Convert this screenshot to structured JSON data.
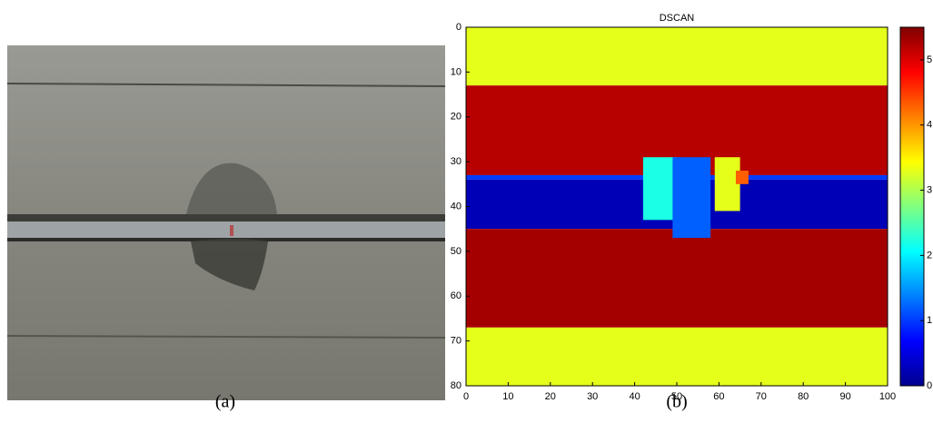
{
  "panel_a": {
    "caption": "(a)"
  },
  "chart_data": {
    "type": "heatmap",
    "title": "DSCAN",
    "caption": "(b)",
    "xlim": [
      0,
      100
    ],
    "ylim": [
      80,
      0
    ],
    "xticks": [
      0,
      10,
      20,
      30,
      40,
      50,
      60,
      70,
      80,
      90,
      100
    ],
    "yticks": [
      0,
      10,
      20,
      30,
      40,
      50,
      60,
      70,
      80
    ],
    "clim": [
      0,
      5.5
    ],
    "cticks": [
      0,
      1,
      2,
      3,
      4,
      5
    ],
    "colormap": "jet",
    "regions": [
      {
        "x": [
          0,
          100
        ],
        "y": [
          0,
          13
        ],
        "value": 3.3
      },
      {
        "x": [
          0,
          100
        ],
        "y": [
          13,
          33
        ],
        "value": 5.2
      },
      {
        "x": [
          0,
          100
        ],
        "y": [
          33,
          34
        ],
        "value": 1.0
      },
      {
        "x": [
          0,
          100
        ],
        "y": [
          34,
          45
        ],
        "value": 0.3
      },
      {
        "x": [
          0,
          100
        ],
        "y": [
          45,
          67
        ],
        "value": 5.3
      },
      {
        "x": [
          0,
          100
        ],
        "y": [
          67,
          80
        ],
        "value": 3.3
      },
      {
        "x": [
          42,
          50
        ],
        "y": [
          29,
          43
        ],
        "value": 2.2
      },
      {
        "x": [
          49,
          58
        ],
        "y": [
          29,
          47
        ],
        "value": 1.2
      },
      {
        "x": [
          59,
          65
        ],
        "y": [
          29,
          41
        ],
        "value": 3.3
      },
      {
        "x": [
          64,
          67
        ],
        "y": [
          32,
          35
        ],
        "value": 4.3
      }
    ]
  }
}
